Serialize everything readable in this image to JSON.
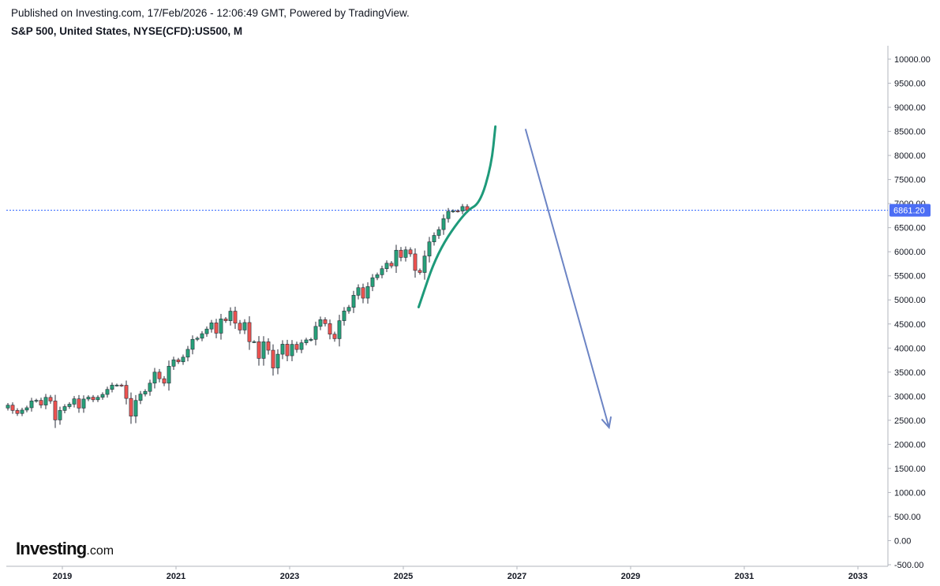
{
  "header": {
    "published": "Published on Investing.com, 17/Feb/2026 - 12:06:49 GMT, Powered by TradingView.",
    "symbol": "S&P 500, United States, NYSE(CFD):US500, M"
  },
  "logo": {
    "main": "Investing",
    "suffix": ".com"
  },
  "colors": {
    "up": "#26a17a",
    "down": "#ef5350",
    "curve": "#1e9a7a",
    "arrow": "#6c84c4",
    "price_line": "#2962ff",
    "price_badge": "#4c6ef5",
    "axis": "#b2b5be"
  },
  "chart_data": {
    "type": "candlestick",
    "title": "S&P 500, United States, NYSE(CFD):US500, M",
    "interval": "M",
    "y_axis": {
      "position": "right",
      "ylim": [
        -500,
        10500
      ],
      "ticks": [
        -500,
        0,
        500,
        1000,
        1500,
        2000,
        2500,
        3000,
        3500,
        4000,
        4500,
        5000,
        5500,
        6000,
        6500,
        7000,
        7500,
        8000,
        8500,
        9000,
        9500,
        10000
      ],
      "tick_labels": [
        "-500.00",
        "0.00",
        "500.00",
        "1000.00",
        "1500.00",
        "2000.00",
        "2500.00",
        "3000.00",
        "3500.00",
        "4000.00",
        "4500.00",
        "5000.00",
        "5500.00",
        "6000.00",
        "6500.00",
        "7000.00",
        "7500.00",
        "8000.00",
        "8500.00",
        "9000.00",
        "9500.00",
        "10000.00"
      ]
    },
    "x_axis": {
      "xlim": [
        2018.0,
        2033.6
      ],
      "ticks": [
        2019,
        2021,
        2023,
        2025,
        2027,
        2029,
        2031,
        2033
      ],
      "tick_labels": [
        "2019",
        "2021",
        "2023",
        "2025",
        "2027",
        "2029",
        "2031",
        "2033"
      ]
    },
    "last_price": {
      "value": 6861.2,
      "label": "6861.20"
    },
    "candles_close": [
      2814,
      2704,
      2641,
      2712,
      2760,
      2901,
      2914,
      2816,
      2976,
      2900,
      2507,
      2704,
      2784,
      2834,
      2945,
      2752,
      2941,
      2980,
      2926,
      2977,
      3037,
      3141,
      3231,
      3231,
      3226,
      2954,
      2585,
      2912,
      3044,
      3100,
      3271,
      3500,
      3363,
      3270,
      3622,
      3756,
      3714,
      3811,
      3973,
      4181,
      4204,
      4298,
      4395,
      4523,
      4308,
      4605,
      4567,
      4766,
      4516,
      4374,
      4530,
      4132,
      4132,
      3785,
      4130,
      3955,
      3586,
      3872,
      4080,
      3840,
      4077,
      3970,
      4109,
      4169,
      4180,
      4450,
      4589,
      4507,
      4288,
      4194,
      4568,
      4770,
      4846,
      5096,
      5254,
      5036,
      5277,
      5460,
      5522,
      5648,
      5762,
      5705,
      6032,
      5882,
      6040,
      5955,
      5612,
      5569,
      5911,
      6205,
      6339,
      6460,
      6688,
      6840,
      6849,
      6845,
      6939,
      6861
    ],
    "annotations": [
      {
        "type": "curve",
        "description": "bullish parabolic projection",
        "points": [
          [
            2025.27,
            4850
          ],
          [
            2025.6,
            6000
          ],
          [
            2026.1,
            6850
          ],
          [
            2026.35,
            7000
          ],
          [
            2026.55,
            7800
          ],
          [
            2026.62,
            8600
          ]
        ]
      },
      {
        "type": "arrow",
        "description": "bearish projection arrow",
        "from": [
          2027.15,
          8550
        ],
        "to": [
          2028.62,
          2350
        ]
      }
    ]
  }
}
